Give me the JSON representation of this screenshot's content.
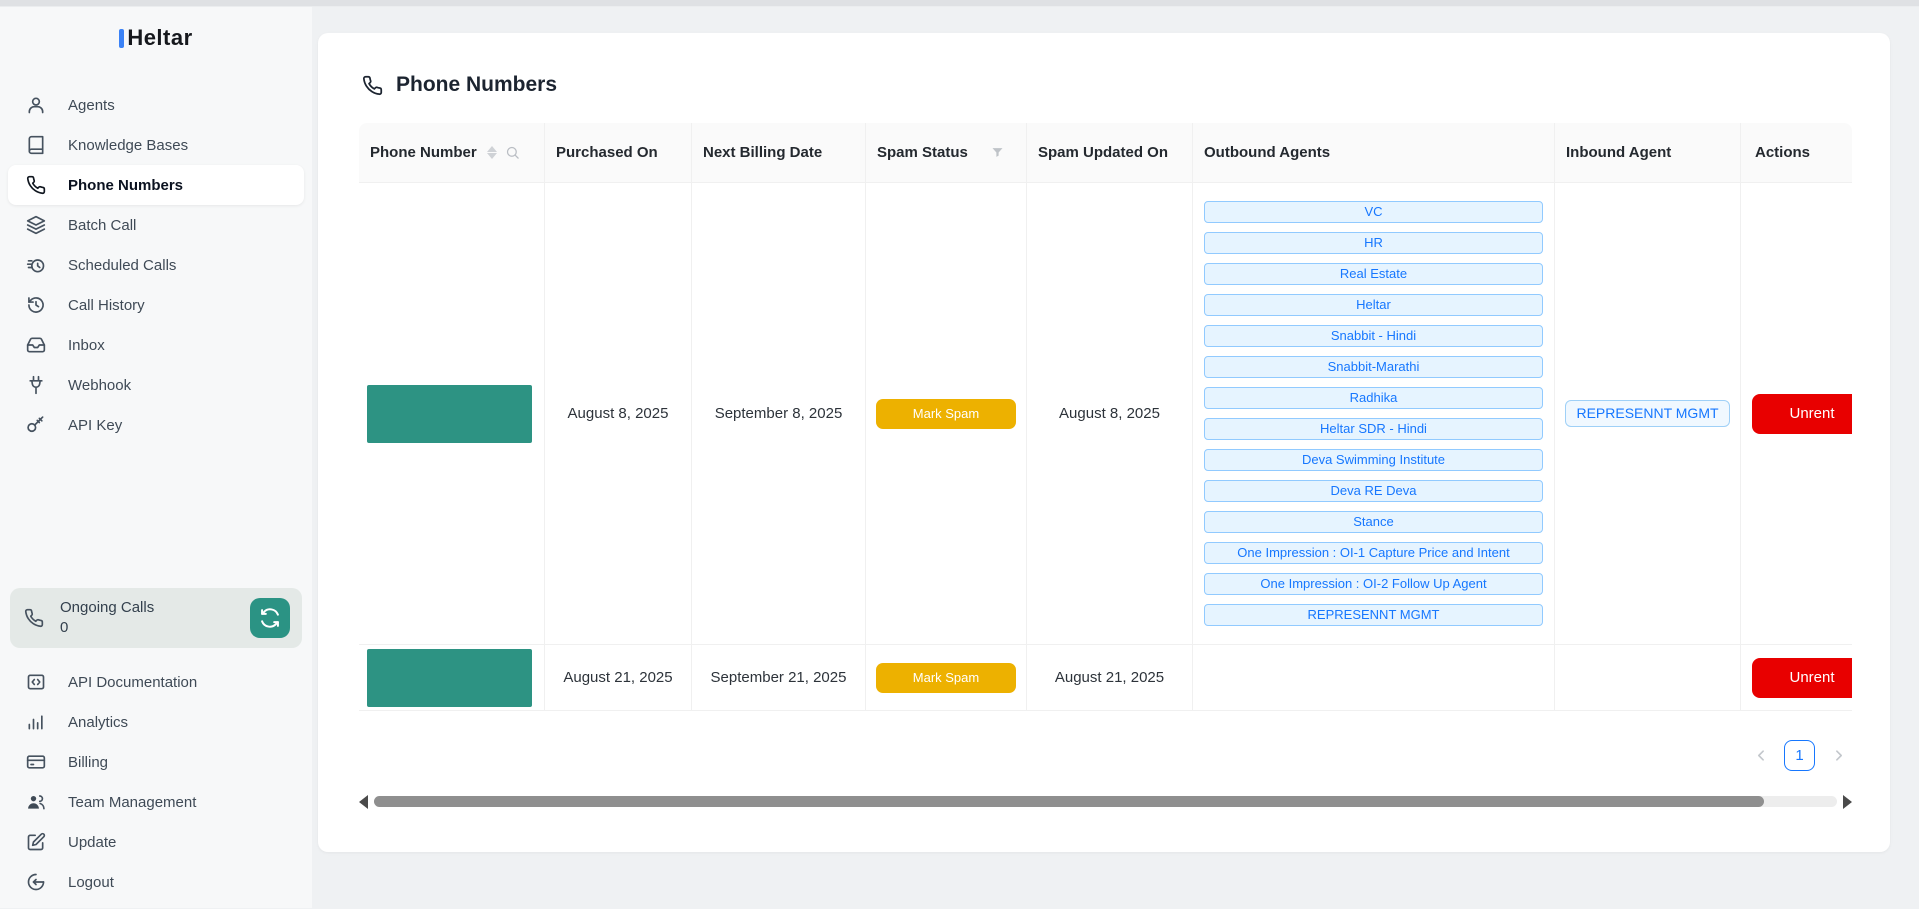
{
  "brand": {
    "name": "Heltar"
  },
  "sidebar": {
    "items": [
      {
        "label": "Agents",
        "icon": "user",
        "active": false
      },
      {
        "label": "Knowledge Bases",
        "icon": "book",
        "active": false
      },
      {
        "label": "Phone Numbers",
        "icon": "phone",
        "active": true
      },
      {
        "label": "Batch Call",
        "icon": "layers",
        "active": false
      },
      {
        "label": "Scheduled Calls",
        "icon": "alarm-clock",
        "active": false
      },
      {
        "label": "Call History",
        "icon": "history",
        "active": false
      },
      {
        "label": "Inbox",
        "icon": "inbox",
        "active": false
      },
      {
        "label": "Webhook",
        "icon": "plug",
        "active": false
      },
      {
        "label": "API Key",
        "icon": "key",
        "active": false
      }
    ],
    "ongoing_calls": {
      "label": "Ongoing Calls",
      "count": "0",
      "icon": "phone",
      "action_icon": "refresh"
    },
    "footer_items": [
      {
        "label": "API Documentation",
        "icon": "code-square",
        "active": false
      },
      {
        "label": "Analytics",
        "icon": "bar-chart",
        "active": false
      },
      {
        "label": "Billing",
        "icon": "credit-card",
        "active": false
      },
      {
        "label": "Team Management",
        "icon": "team",
        "active": false
      },
      {
        "label": "Update",
        "icon": "edit",
        "active": false
      },
      {
        "label": "Logout",
        "icon": "logout",
        "active": false
      }
    ]
  },
  "page": {
    "title": "Phone Numbers",
    "title_icon": "phone"
  },
  "table": {
    "columns": [
      "Phone Number",
      "Purchased On",
      "Next Billing Date",
      "Spam Status",
      "Spam Updated On",
      "Outbound Agents",
      "Inbound Agent",
      "Actions"
    ],
    "rows": [
      {
        "phone_number_redacted": true,
        "purchased_on": "August 8, 2025",
        "next_billing_date": "September 8, 2025",
        "spam_button": "Mark Spam",
        "spam_updated_on": "August 8, 2025",
        "outbound_agents": [
          "VC",
          "HR",
          "Real Estate",
          "Heltar",
          "Snabbit - Hindi",
          "Snabbit-Marathi",
          "Radhika",
          "Heltar SDR - Hindi",
          "Deva Swimming Institute",
          "Deva RE Deva",
          "Stance",
          "One Impression : OI-1 Capture Price and Intent",
          "One Impression : OI-2 Follow Up Agent",
          "REPRESENNT MGMT"
        ],
        "inbound_agent": "REPRESENNT MGMT",
        "action_button": "Unrent"
      },
      {
        "phone_number_redacted": true,
        "purchased_on": "August 21, 2025",
        "next_billing_date": "September 21, 2025",
        "spam_button": "Mark Spam",
        "spam_updated_on": "August 21, 2025",
        "outbound_agents": [],
        "inbound_agent": "",
        "action_button": "Unrent"
      }
    ]
  },
  "pagination": {
    "current_page": "1"
  },
  "colors": {
    "accent_blue": "#1677ff",
    "tag_bg": "#e6f4ff",
    "tag_border": "#91caff",
    "spam_yellow": "#edb100",
    "unrent_red": "#e80000",
    "redaction_green": "#2d9383",
    "refresh_teal": "#2b9384",
    "logo_blue": "#3b82f6",
    "sidebar_bg": "#f7f8f9",
    "ongoing_box_bg": "#e4e9e7"
  }
}
